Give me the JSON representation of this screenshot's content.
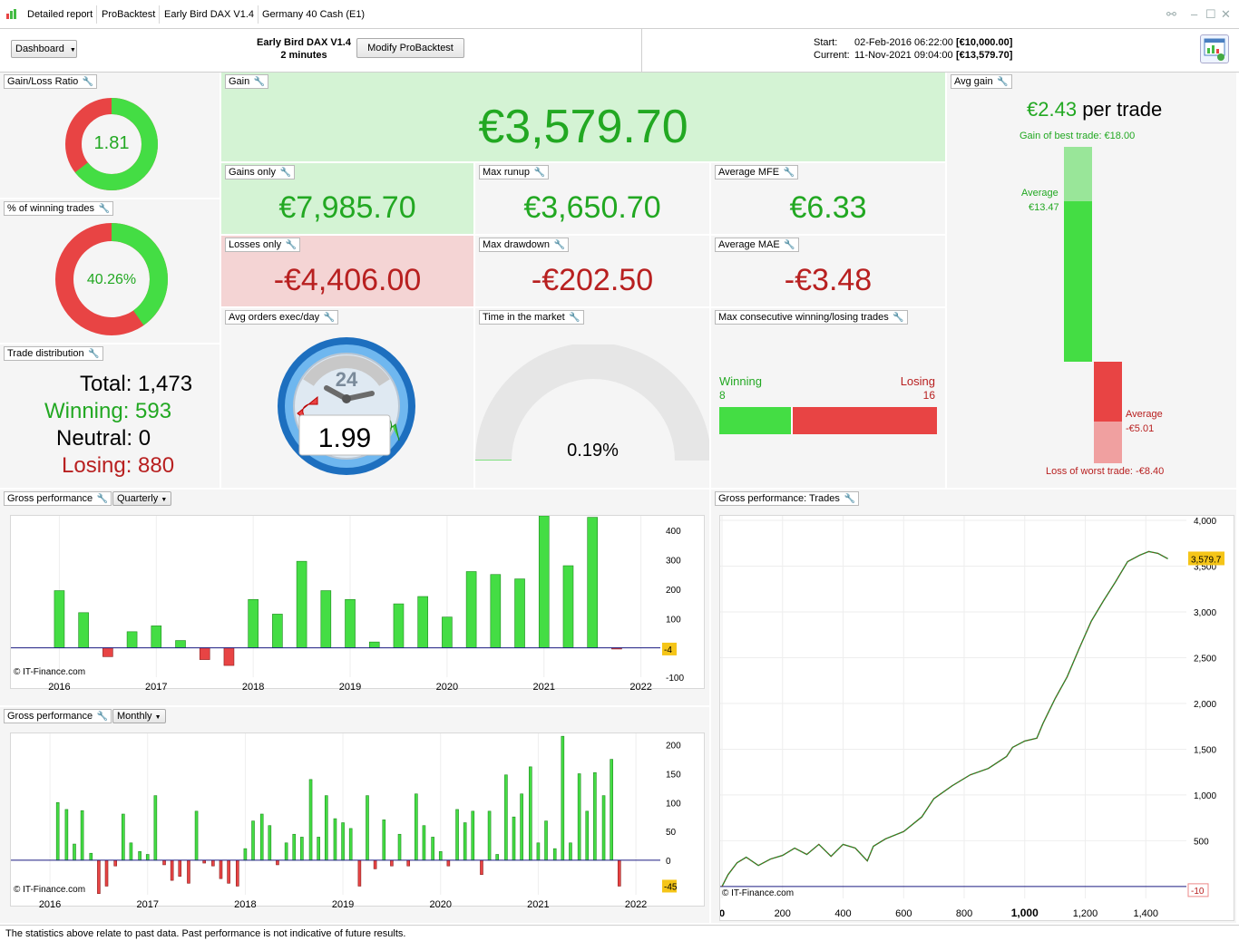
{
  "tabs": {
    "detailed": "Detailed report",
    "probacktest": "ProBacktest",
    "system": "Early Bird DAX V1.4",
    "instrument": "Germany 40 Cash (E1)"
  },
  "toolbar": {
    "dashboard": "Dashboard",
    "system_name": "Early Bird DAX V1.4",
    "timeframe": "2 minutes",
    "modify": "Modify ProBacktest",
    "start_label": "Start:",
    "start_date": "02-Feb-2016 06:22:00",
    "start_capital": "[€10,000.00]",
    "current_label": "Current:",
    "current_date": "11-Nov-2021 09:04:00",
    "current_capital": "[€13,579.70]"
  },
  "colors": {
    "win": "#44dd44",
    "loss": "#e84444",
    "green_text": "#22a822",
    "red_text": "#b82020"
  },
  "gain_loss": {
    "title": "Gain/Loss Ratio",
    "value": "1.81",
    "win_fraction": 0.644
  },
  "winning_pct": {
    "title": "% of winning trades",
    "value": "40.26%",
    "win_fraction": 0.4026
  },
  "trade_dist": {
    "title": "Trade distribution",
    "total": "Total: 1,473",
    "winning": "Winning: 593",
    "neutral": "Neutral: 0",
    "losing": "Losing: 880"
  },
  "gain": {
    "title": "Gain",
    "value": "€3,579.70"
  },
  "gains_only": {
    "title": "Gains only",
    "value": "€7,985.70"
  },
  "max_runup": {
    "title": "Max runup",
    "value": "€3,650.70"
  },
  "avg_mfe": {
    "title": "Average MFE",
    "value": "€6.33"
  },
  "losses_only": {
    "title": "Losses only",
    "value": "-€4,406.00"
  },
  "max_drawdown": {
    "title": "Max drawdown",
    "value": "-€202.50"
  },
  "avg_mae": {
    "title": "Average MAE",
    "value": "-€3.48"
  },
  "avg_orders": {
    "title": "Avg orders exec/day",
    "value": "1.99",
    "clock": "24"
  },
  "time_market": {
    "title": "Time in the market",
    "value": "0.19%",
    "fraction": 0.0019
  },
  "consecutive": {
    "title": "Max consecutive winning/losing trades",
    "win_label": "Winning",
    "win_value": "8",
    "loss_label": "Losing",
    "loss_value": "16"
  },
  "avg_gain": {
    "title": "Avg gain",
    "value": "€2.43",
    "suffix": "per trade",
    "best": "Gain of best trade: €18.00",
    "avg_win_label": "Average",
    "avg_win_value": "€13.47",
    "avg_loss_label": "Average",
    "avg_loss_value": "-€5.01",
    "worst": "Loss of worst trade: -€8.40",
    "best_num": 18.0,
    "avg_win_num": 13.47,
    "avg_loss_num": -5.01,
    "worst_num": -8.4
  },
  "quarterly": {
    "title": "Gross performance",
    "mode": "Quarterly",
    "credit": "© IT-Finance.com",
    "last_value": "-4"
  },
  "monthly": {
    "title": "Gross performance",
    "mode": "Monthly",
    "credit": "© IT-Finance.com",
    "last_value": "-45"
  },
  "trades_perf": {
    "title": "Gross performance: Trades",
    "credit": "© IT-Finance.com",
    "last_value": "3,579.7",
    "min_value": "-10"
  },
  "footer": "The statistics above relate to past data. Past performance is not indicative of future results.",
  "chart_data": [
    {
      "type": "bar",
      "name": "quarterly",
      "x": [
        2016.0,
        2016.25,
        2016.5,
        2016.75,
        2017.0,
        2017.25,
        2017.5,
        2017.75,
        2018.0,
        2018.25,
        2018.5,
        2018.75,
        2019.0,
        2019.25,
        2019.5,
        2019.75,
        2020.0,
        2020.25,
        2020.5,
        2020.75,
        2021.0,
        2021.25,
        2021.5,
        2021.75
      ],
      "values": [
        195,
        120,
        -30,
        55,
        75,
        25,
        -40,
        -60,
        165,
        115,
        295,
        195,
        165,
        20,
        150,
        175,
        105,
        260,
        250,
        235,
        450,
        280,
        445,
        -4
      ],
      "xticks": [
        "2016",
        "2017",
        "2018",
        "2019",
        "2020",
        "2021",
        "2022"
      ],
      "yticks": [
        "400",
        "300",
        "200",
        "100",
        "-100"
      ],
      "ylim": [
        -100,
        450
      ],
      "xlim": [
        2015.5,
        2022.2
      ]
    },
    {
      "type": "bar",
      "name": "monthly",
      "x": [
        2016.08,
        2016.17,
        2016.25,
        2016.33,
        2016.42,
        2016.5,
        2016.58,
        2016.67,
        2016.75,
        2016.83,
        2016.92,
        2017.0,
        2017.08,
        2017.17,
        2017.25,
        2017.33,
        2017.42,
        2017.5,
        2017.58,
        2017.67,
        2017.75,
        2017.83,
        2017.92,
        2018.0,
        2018.08,
        2018.17,
        2018.25,
        2018.33,
        2018.42,
        2018.5,
        2018.58,
        2018.67,
        2018.75,
        2018.83,
        2018.92,
        2019.0,
        2019.08,
        2019.17,
        2019.25,
        2019.33,
        2019.42,
        2019.5,
        2019.58,
        2019.67,
        2019.75,
        2019.83,
        2019.92,
        2020.0,
        2020.08,
        2020.17,
        2020.25,
        2020.33,
        2020.42,
        2020.5,
        2020.58,
        2020.67,
        2020.75,
        2020.83,
        2020.92,
        2021.0,
        2021.08,
        2021.17,
        2021.25,
        2021.33,
        2021.42,
        2021.5,
        2021.58,
        2021.67,
        2021.75,
        2021.83
      ],
      "values": [
        100,
        88,
        28,
        86,
        12,
        -58,
        -45,
        -10,
        80,
        30,
        15,
        10,
        112,
        -8,
        -35,
        -28,
        -40,
        85,
        -5,
        -10,
        -32,
        -40,
        -45,
        20,
        68,
        80,
        60,
        -8,
        30,
        45,
        40,
        140,
        40,
        112,
        72,
        65,
        55,
        -45,
        112,
        -15,
        70,
        -10,
        45,
        -10,
        115,
        60,
        40,
        15,
        -10,
        88,
        65,
        85,
        -25,
        85,
        10,
        148,
        75,
        115,
        162,
        30,
        68,
        20,
        215,
        30,
        150,
        85,
        152,
        112,
        175,
        -45
      ],
      "xticks": [
        "2016",
        "2017",
        "2018",
        "2019",
        "2020",
        "2021",
        "2022"
      ],
      "yticks": [
        "200",
        "150",
        "100",
        "50",
        "0"
      ],
      "ylim": [
        -60,
        220
      ],
      "xlim": [
        2015.6,
        2022.25
      ]
    },
    {
      "type": "line",
      "name": "trades",
      "xticks": [
        "0",
        "200",
        "400",
        "600",
        "800",
        "1,000",
        "1,200",
        "1,400"
      ],
      "yticks": [
        "4,000",
        "3,500",
        "3,000",
        "2,500",
        "2,000",
        "1,500",
        "1,000",
        "500"
      ],
      "xlim": [
        0,
        1540
      ],
      "ylim": [
        -130,
        4050
      ],
      "points": [
        [
          0,
          0
        ],
        [
          20,
          130
        ],
        [
          50,
          260
        ],
        [
          80,
          320
        ],
        [
          120,
          230
        ],
        [
          160,
          300
        ],
        [
          200,
          340
        ],
        [
          240,
          420
        ],
        [
          280,
          350
        ],
        [
          320,
          460
        ],
        [
          360,
          330
        ],
        [
          400,
          460
        ],
        [
          440,
          420
        ],
        [
          480,
          280
        ],
        [
          500,
          440
        ],
        [
          540,
          520
        ],
        [
          600,
          600
        ],
        [
          660,
          760
        ],
        [
          700,
          960
        ],
        [
          760,
          1100
        ],
        [
          820,
          1220
        ],
        [
          880,
          1290
        ],
        [
          940,
          1420
        ],
        [
          960,
          1520
        ],
        [
          1000,
          1590
        ],
        [
          1040,
          1620
        ],
        [
          1060,
          1780
        ],
        [
          1100,
          2050
        ],
        [
          1140,
          2290
        ],
        [
          1180,
          2600
        ],
        [
          1220,
          2900
        ],
        [
          1260,
          3120
        ],
        [
          1300,
          3330
        ],
        [
          1340,
          3550
        ],
        [
          1380,
          3620
        ],
        [
          1410,
          3660
        ],
        [
          1440,
          3640
        ],
        [
          1473,
          3580
        ]
      ]
    }
  ]
}
